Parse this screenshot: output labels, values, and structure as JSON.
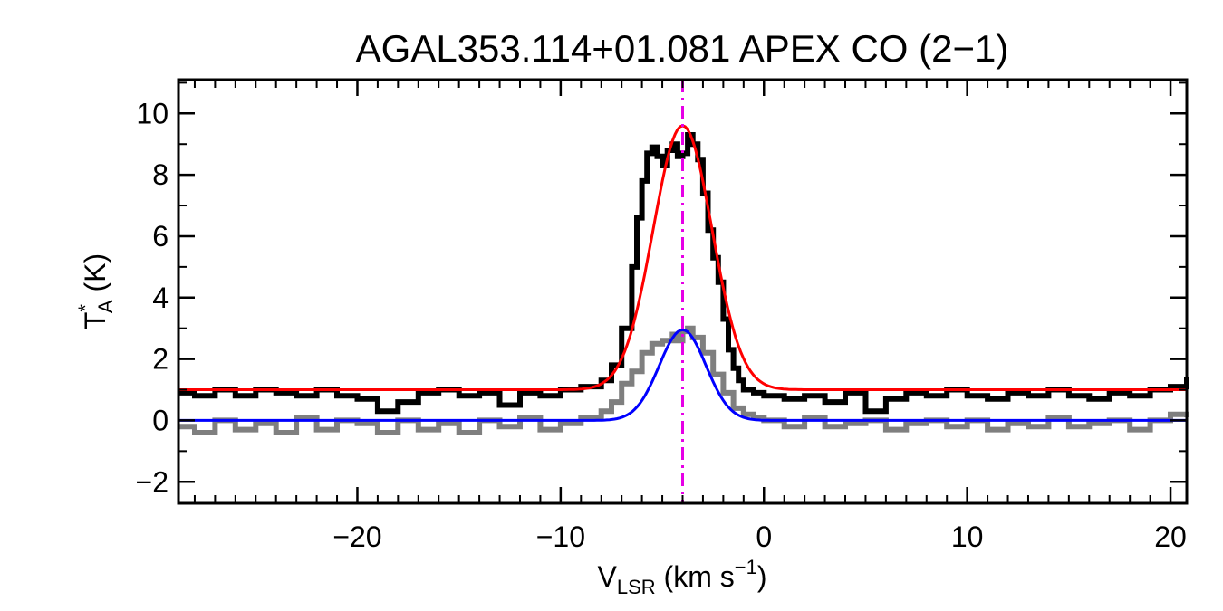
{
  "chart_data": {
    "type": "line",
    "title": "AGAL353.114+01.081  APEX CO (2−1)",
    "xlabel": {
      "main": "V",
      "sub": "LSR",
      "unit_pre": " (km s",
      "sup": "−1",
      "unit_post": ")"
    },
    "ylabel": {
      "main": "T",
      "sup": "*",
      "sub": "A",
      "unit": " (K)"
    },
    "xlim": [
      -28.8,
      20.8
    ],
    "ylim": [
      -2.7,
      11.1
    ],
    "x_ticks": [
      -20,
      -10,
      0,
      10,
      20
    ],
    "x_tick_labels": [
      "−20",
      "−10",
      "0",
      "10",
      "20"
    ],
    "y_ticks": [
      -2,
      0,
      2,
      4,
      6,
      8,
      10
    ],
    "y_tick_labels": [
      "−2",
      "0",
      "2",
      "4",
      "6",
      "8",
      "10"
    ],
    "x_minor_step": 1,
    "y_minor_step": 1,
    "grid": false,
    "marker_line": {
      "x": -4.0,
      "style": "dash-dot",
      "color": "#e600e6"
    },
    "series": [
      {
        "style": "histogram",
        "color": "#000000",
        "x": [
          -28.8,
          -28.0,
          -27.0,
          -26.0,
          -25.0,
          -24.0,
          -23.0,
          -22.0,
          -21.0,
          -20.0,
          -19.0,
          -18.0,
          -17.0,
          -16.0,
          -15.0,
          -14.0,
          -13.0,
          -12.0,
          -11.0,
          -10.0,
          -9.0,
          -8.0,
          -7.5,
          -7.0,
          -6.5,
          -6.25,
          -6.0,
          -5.75,
          -5.5,
          -5.25,
          -5.0,
          -4.75,
          -4.5,
          -4.25,
          -4.0,
          -3.75,
          -3.5,
          -3.25,
          -3.0,
          -2.75,
          -2.5,
          -2.25,
          -2.0,
          -1.75,
          -1.5,
          -1.25,
          -1.0,
          -0.5,
          0.0,
          1.0,
          2.0,
          3.0,
          4.0,
          5.0,
          6.0,
          7.0,
          8.0,
          9.0,
          10.0,
          11.0,
          12.0,
          13.0,
          14.0,
          15.0,
          16.0,
          17.0,
          18.0,
          19.0,
          20.0,
          20.8
        ],
        "y": [
          0.9,
          0.8,
          1.0,
          0.8,
          1.0,
          0.9,
          0.8,
          1.0,
          0.8,
          0.7,
          0.3,
          0.6,
          0.9,
          1.0,
          0.8,
          0.9,
          0.5,
          0.9,
          0.8,
          1.0,
          1.1,
          1.3,
          1.8,
          3.0,
          5.0,
          6.6,
          7.8,
          8.7,
          8.9,
          8.6,
          8.3,
          8.8,
          9.0,
          8.6,
          8.7,
          9.3,
          9.0,
          8.5,
          7.4,
          6.2,
          5.3,
          4.5,
          3.3,
          2.3,
          1.7,
          1.3,
          1.0,
          0.9,
          0.8,
          0.7,
          0.8,
          0.6,
          0.9,
          0.3,
          0.7,
          0.9,
          0.8,
          1.0,
          0.8,
          0.7,
          0.9,
          0.8,
          1.0,
          0.8,
          0.7,
          0.9,
          0.8,
          1.0,
          1.1,
          1.4
        ]
      },
      {
        "style": "histogram",
        "color": "#7f7f7f",
        "x": [
          -28.8,
          -28.0,
          -27.0,
          -26.0,
          -25.0,
          -24.0,
          -23.0,
          -22.0,
          -21.0,
          -20.0,
          -19.0,
          -18.0,
          -17.0,
          -16.0,
          -15.0,
          -14.0,
          -13.0,
          -12.0,
          -11.0,
          -10.0,
          -9.0,
          -8.0,
          -7.5,
          -7.0,
          -6.5,
          -6.0,
          -5.5,
          -5.0,
          -4.5,
          -4.25,
          -4.0,
          -3.75,
          -3.5,
          -3.0,
          -2.5,
          -2.0,
          -1.5,
          -1.0,
          -0.5,
          0.0,
          1.0,
          2.0,
          3.0,
          4.0,
          5.0,
          6.0,
          7.0,
          8.0,
          9.0,
          10.0,
          11.0,
          12.0,
          13.0,
          14.0,
          15.0,
          16.0,
          17.0,
          18.0,
          19.0,
          20.0,
          20.8
        ],
        "y": [
          -0.2,
          -0.4,
          0.0,
          -0.3,
          -0.1,
          -0.4,
          0.1,
          -0.3,
          0.0,
          -0.1,
          -0.4,
          0.0,
          -0.3,
          -0.1,
          -0.4,
          0.0,
          -0.2,
          0.1,
          -0.3,
          -0.1,
          0.1,
          0.3,
          0.6,
          1.2,
          1.6,
          2.2,
          2.5,
          2.6,
          2.8,
          2.6,
          2.9,
          3.0,
          2.7,
          2.2,
          1.5,
          0.9,
          0.4,
          0.2,
          0.1,
          0.0,
          -0.2,
          0.1,
          -0.2,
          -0.1,
          0.0,
          -0.3,
          -0.1,
          0.0,
          -0.2,
          0.0,
          -0.3,
          -0.1,
          -0.2,
          0.1,
          -0.2,
          -0.1,
          0.0,
          -0.3,
          0.0,
          0.2,
          0.1
        ]
      },
      {
        "style": "gaussian",
        "color": "#ff0000",
        "offset": 1.0,
        "amplitude": 8.6,
        "center": -4.0,
        "sigma": 1.45,
        "x_range": [
          -28.8,
          20.8
        ]
      },
      {
        "style": "gaussian",
        "color": "#0000ff",
        "offset": 0.0,
        "amplitude": 2.95,
        "center": -4.0,
        "sigma": 1.15,
        "x_range": [
          -28.8,
          20.8
        ]
      }
    ]
  }
}
